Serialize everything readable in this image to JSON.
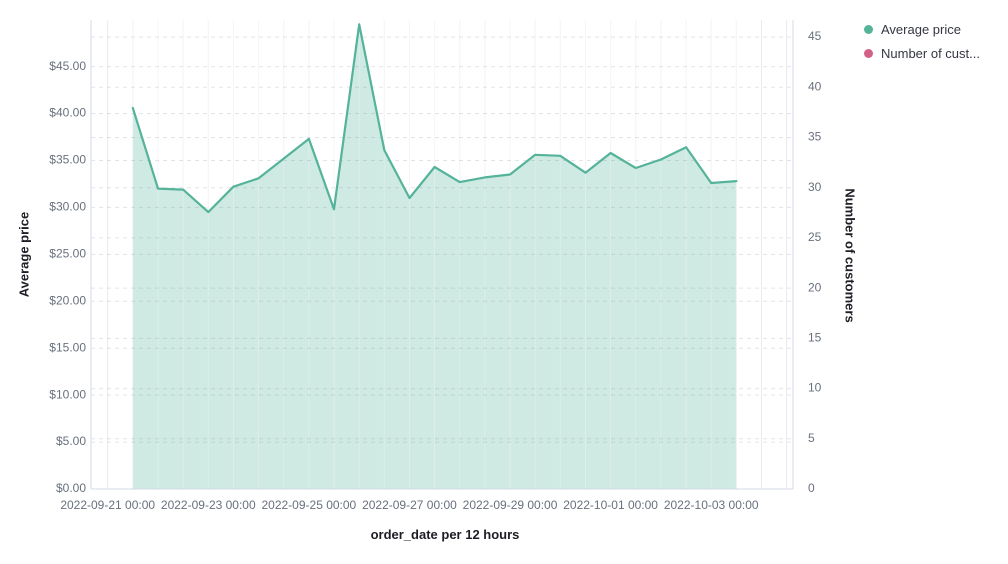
{
  "legend": {
    "items": [
      {
        "label": "Average price",
        "color": "#54B399"
      },
      {
        "label": "Number of cust...",
        "color": "#D36086"
      }
    ]
  },
  "chart_data": {
    "type": "area",
    "title": "",
    "xlabel": "order_date per 12 hours",
    "ylabel_left": "Average price",
    "ylabel_right": "Number of customers",
    "x_tick_labels": [
      "2022-09-21 00:00",
      "2022-09-23 00:00",
      "2022-09-25 00:00",
      "2022-09-27 00:00",
      "2022-09-29 00:00",
      "2022-10-01 00:00",
      "2022-10-03 00:00"
    ],
    "left_axis": {
      "tick_labels": [
        "$0.00",
        "$5.00",
        "$10.00",
        "$15.00",
        "$20.00",
        "$25.00",
        "$30.00",
        "$35.00",
        "$40.00",
        "$45.00"
      ],
      "tick_values": [
        0,
        5,
        10,
        15,
        20,
        25,
        30,
        35,
        40,
        45
      ],
      "range": [
        0,
        50.3
      ]
    },
    "right_axis": {
      "tick_labels": [
        "0",
        "5",
        "10",
        "15",
        "20",
        "25",
        "30",
        "35",
        "40",
        "45"
      ],
      "tick_values": [
        0,
        5,
        10,
        15,
        20,
        25,
        30,
        35,
        40,
        45
      ],
      "range": [
        0,
        46.7
      ]
    },
    "grid": true,
    "legend_position": "top-right",
    "x_interval": "12 hours",
    "x": [
      "2022-09-21 12:00",
      "2022-09-22 00:00",
      "2022-09-22 12:00",
      "2022-09-23 00:00",
      "2022-09-23 12:00",
      "2022-09-24 00:00",
      "2022-09-24 12:00",
      "2022-09-25 00:00",
      "2022-09-25 12:00",
      "2022-09-26 00:00",
      "2022-09-26 12:00",
      "2022-09-27 00:00",
      "2022-09-27 12:00",
      "2022-09-28 00:00",
      "2022-09-28 12:00",
      "2022-09-29 00:00",
      "2022-09-29 12:00",
      "2022-09-30 00:00",
      "2022-09-30 12:00",
      "2022-10-01 00:00",
      "2022-10-01 12:00",
      "2022-10-02 00:00",
      "2022-10-02 12:00",
      "2022-10-03 00:00",
      "2022-10-03 12:00"
    ],
    "series": [
      {
        "name": "Average price",
        "axis": "left",
        "color": "#54B399",
        "fill_opacity": 0.28,
        "values": [
          40.6,
          32.0,
          31.9,
          29.5,
          32.2,
          33.1,
          35.2,
          37.3,
          29.8,
          49.5,
          36.1,
          31.0,
          34.3,
          32.7,
          33.2,
          33.5,
          35.6,
          35.5,
          33.7,
          35.8,
          34.2,
          35.1,
          36.4,
          32.6,
          32.8
        ]
      },
      {
        "name": "Number of customers",
        "axis": "right",
        "color": "#D36086",
        "values": []
      }
    ],
    "colors": {
      "grid_vertical": "#e8ecef",
      "grid_horizontal": "rgba(100,110,125,0.18)",
      "axis_line": "#d3dae6",
      "tick_text": "#69707D",
      "title_text": "#1d1e24"
    }
  }
}
